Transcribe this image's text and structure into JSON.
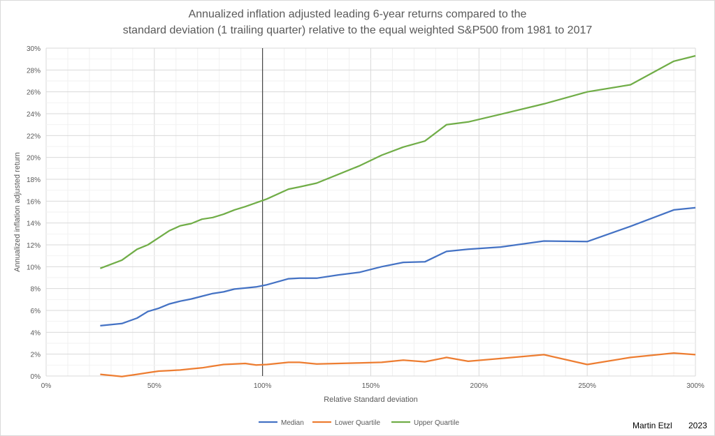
{
  "chart_data": {
    "type": "line",
    "title_lines": [
      "Annualized inflation adjusted leading 6-year returns compared to the",
      "standard deviation (1 trailing quarter) relative to the equal weighted S&P500 from 1981 to 2017"
    ],
    "xlabel": "Relative Standard deviation",
    "ylabel": "Annualized inflation adjusted return",
    "xlim": [
      0,
      300
    ],
    "ylim": [
      0,
      30
    ],
    "x_ticks": [
      "0%",
      "50%",
      "100%",
      "150%",
      "200%",
      "250%",
      "300%"
    ],
    "y_ticks": [
      "0%",
      "2%",
      "4%",
      "6%",
      "8%",
      "10%",
      "12%",
      "14%",
      "16%",
      "18%",
      "20%",
      "22%",
      "24%",
      "26%",
      "28%",
      "30%"
    ],
    "grid": true,
    "reference_line_x": 100,
    "legend_position": "bottom",
    "x": [
      25,
      35,
      42,
      47,
      52,
      57,
      62,
      67,
      72,
      77,
      82,
      87,
      92,
      97,
      102,
      112,
      117,
      125,
      135,
      145,
      155,
      165,
      175,
      185,
      195,
      210,
      230,
      250,
      270,
      290,
      300
    ],
    "series": [
      {
        "name": "Median",
        "color": "#4472c4",
        "values": [
          4.6,
          4.8,
          5.3,
          5.9,
          6.2,
          6.6,
          6.85,
          7.05,
          7.3,
          7.55,
          7.7,
          7.95,
          8.05,
          8.15,
          8.35,
          8.9,
          8.95,
          8.95,
          9.25,
          9.5,
          10.0,
          10.4,
          10.45,
          11.4,
          11.6,
          11.8,
          12.35,
          12.3,
          13.7,
          15.2,
          15.4
        ]
      },
      {
        "name": "Lower Quartile",
        "color": "#ed7d31",
        "values": [
          0.15,
          -0.05,
          0.15,
          0.3,
          0.45,
          0.5,
          0.55,
          0.65,
          0.75,
          0.9,
          1.05,
          1.1,
          1.15,
          1.0,
          1.05,
          1.25,
          1.25,
          1.1,
          1.15,
          1.2,
          1.25,
          1.45,
          1.3,
          1.7,
          1.35,
          1.6,
          1.95,
          1.05,
          1.7,
          2.1,
          1.95
        ]
      },
      {
        "name": "Upper Quartile",
        "color": "#70ad47",
        "values": [
          9.85,
          10.6,
          11.6,
          12.0,
          12.65,
          13.3,
          13.75,
          13.95,
          14.35,
          14.5,
          14.8,
          15.2,
          15.5,
          15.85,
          16.2,
          17.1,
          17.3,
          17.65,
          18.45,
          19.25,
          20.2,
          20.95,
          21.5,
          23.0,
          23.25,
          23.95,
          24.9,
          26.0,
          26.65,
          28.8,
          29.3
        ]
      }
    ]
  },
  "credit": {
    "author": "Martin Etzl",
    "year": "2023"
  }
}
